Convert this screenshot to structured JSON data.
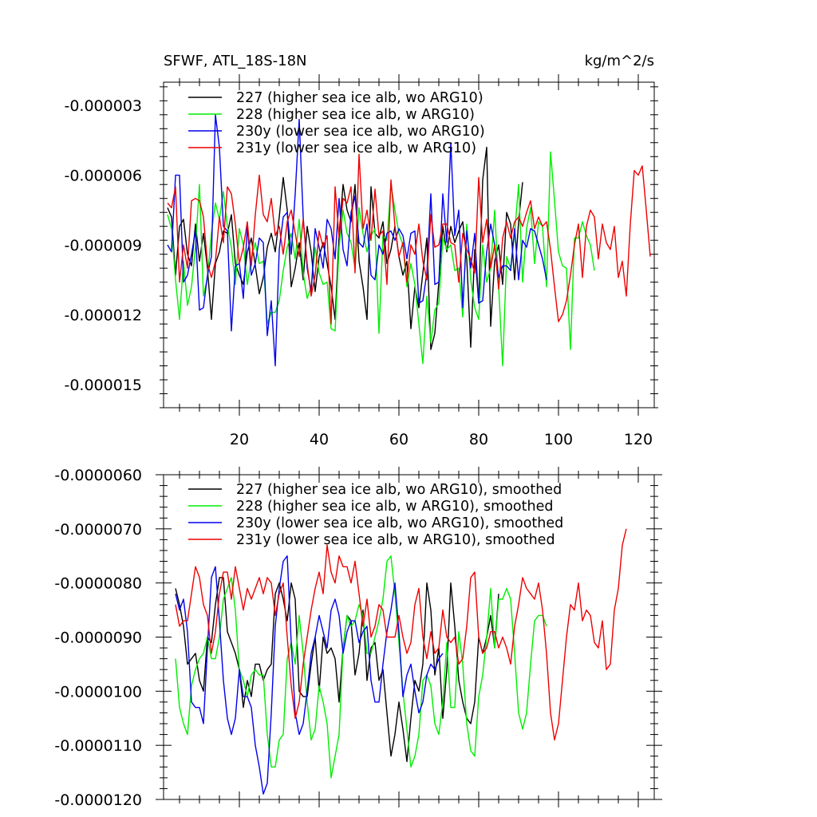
{
  "chart_data": [
    {
      "type": "line",
      "title": "SFWF, ATL_18S-18N",
      "units": "kg/m^2/s",
      "xlim": [
        1,
        124
      ],
      "ylim": [
        -1.6e-05,
        -2e-06
      ],
      "xticks": [
        20,
        40,
        60,
        80,
        100,
        120
      ],
      "xtick_labels": [
        "20",
        "40",
        "60",
        "80",
        "100",
        "120"
      ],
      "yticks": [
        -3e-06,
        -6e-06,
        -9e-06,
        -1.2e-05,
        -1.5e-05
      ],
      "ytick_labels": [
        "-0.000003",
        "-0.000006",
        "-0.000009",
        "-0.000012",
        "-0.000015"
      ],
      "legend_placement": "top-left",
      "series": [
        {
          "name": "227 (higher sea ice alb, wo ARG10)",
          "color": "#000000",
          "x_start": 2,
          "values": [
            -7.4e-06,
            -7.8e-06,
            -1.03e-05,
            -8.2e-06,
            -7.9e-06,
            -9.4e-06,
            -9.9e-06,
            -8.1e-06,
            -9.7e-06,
            -8.5e-06,
            -1e-05,
            -1.22e-05,
            -9.8e-06,
            -9.3e-06,
            -8.4e-06,
            -8.5e-06,
            -7.7e-06,
            -9.8e-06,
            -1.03e-05,
            -1.07e-05,
            -9.3e-06,
            -8.7e-06,
            -9.9e-06,
            -1.11e-05,
            -1.04e-05,
            -9.1e-06,
            -8.5e-06,
            -9.3e-06,
            -7.8e-06,
            -6.1e-06,
            -7.5e-06,
            -1.08e-05,
            -1e-05,
            -8.9e-06,
            -1.05e-05,
            -8.2e-06,
            -9.3e-06,
            -1.1e-05,
            -9.5e-06,
            -8.9e-06,
            -9.8e-06,
            -1.08e-05,
            -1.22e-05,
            -8.6e-06,
            -6.4e-06,
            -7.5e-06,
            -8e-06,
            -6.4e-06,
            -9.7e-06,
            -1.08e-05,
            -1.22e-05,
            -6.5e-06,
            -8.5e-06,
            -8.7e-06,
            -8e-06,
            -9.8e-06,
            -9.2e-06,
            -8.2e-06,
            -9.5e-06,
            -1.03e-05,
            -9.7e-06,
            -1.26e-05,
            -1.08e-05,
            -1.17e-05,
            -1.02e-05,
            -8.7e-06,
            -1.35e-05,
            -1.28e-05,
            -1.06e-05,
            -8.2e-06,
            -9.3e-06,
            -8.2e-06,
            -8.9e-06,
            -8.4e-06,
            -8e-06,
            -9.6e-06,
            -1.34e-05,
            -9.2e-06,
            -1.15e-05,
            -6.2e-06,
            -4.8e-06,
            -1.25e-05,
            -9.7e-06,
            -9e-06,
            -1.07e-05,
            -7.6e-06,
            -8.1e-06,
            -1.05e-05,
            -8e-06,
            -6.3e-06
          ]
        },
        {
          "name": "228 (higher sea ice alb, w ARG10)",
          "color": "#00ee00",
          "x_start": 2,
          "values": [
            -7.7e-06,
            -8.3e-06,
            -1.05e-05,
            -1.22e-05,
            -9.7e-06,
            -1.16e-05,
            -1.08e-05,
            -9.1e-06,
            -6.4e-06,
            -1.12e-05,
            -1.04e-05,
            -8.5e-06,
            -7.2e-06,
            -7.9e-06,
            -6.7e-06,
            -8.2e-06,
            -9.1e-06,
            -1.07e-05,
            -8.3e-06,
            -9e-06,
            -1.07e-05,
            -9.6e-06,
            -8.9e-06,
            -9.8e-06,
            -9.7e-06,
            -1.24e-05,
            -1.19e-05,
            -1.19e-05,
            -1.14e-05,
            -1.01e-05,
            -9.1e-06,
            -8.5e-06,
            -9.6e-06,
            -7.9e-06,
            -1.02e-05,
            -1.13e-05,
            -1.08e-05,
            -9.1e-06,
            -1.02e-05,
            -1.07e-05,
            -1.06e-05,
            -1.26e-05,
            -1.27e-05,
            -9.1e-06,
            -7.5e-06,
            -8.5e-06,
            -8.9e-06,
            -1e-05,
            -7.4e-06,
            -8.5e-06,
            -9.3e-06,
            -8.6e-06,
            -8.3e-06,
            -1.28e-05,
            -8.6e-06,
            -8.8e-06,
            -6.4e-06,
            -7.5e-06,
            -8.5e-06,
            -9e-06,
            -1.08e-05,
            -9.8e-06,
            -1.07e-05,
            -1.24e-05,
            -1.41e-05,
            -1.12e-05,
            -1.32e-05,
            -1.18e-05,
            -1.15e-05,
            -8.7e-06,
            -9.2e-06,
            -9e-06,
            -1.01e-05,
            -1e-05,
            -1.21e-05,
            -8.1e-06,
            -1.05e-05,
            -1.17e-05,
            -1.22e-05,
            -9e-06,
            -1.06e-05,
            -1e-05,
            -7.5e-06,
            -1.08e-05,
            -1.42e-05,
            -9.5e-06,
            -1e-05,
            -8.5e-06,
            -6.4e-06,
            -1.06e-05,
            -8.3e-06,
            -7.4e-06,
            -9.8e-06,
            -8e-06,
            -8.2e-06,
            -1.08e-05,
            -5e-06,
            -7.1e-06,
            -9.3e-06,
            -9.9e-06,
            -1e-05,
            -1.35e-05,
            -8.7e-06,
            -8.7e-06,
            -8e-06,
            -8.6e-06,
            -9e-06,
            -1.01e-05
          ]
        },
        {
          "name": "230y (lower sea ice alb, wo ARG10)",
          "color": "#0000ee",
          "x_start": 2,
          "values": [
            -9e-06,
            -9.3e-06,
            -6e-06,
            -6e-06,
            -1.06e-05,
            -1.03e-05,
            -9.4e-06,
            -8.4e-06,
            -1.18e-05,
            -1.17e-05,
            -1.03e-05,
            -9.5e-06,
            -3.4e-06,
            -4.8e-06,
            -8.2e-06,
            -8.4e-06,
            -1.27e-05,
            -9.9e-06,
            -9.8e-06,
            -1.13e-05,
            -8.2e-06,
            -1.03e-05,
            -9.8e-06,
            -8.7e-06,
            -8.9e-06,
            -1.29e-05,
            -1.14e-05,
            -1.42e-05,
            -9.2e-06,
            -7.8e-06,
            -7.6e-06,
            -9.4e-06,
            -6.8e-06,
            -3.6e-06,
            -7.8e-06,
            -1e-05,
            -1.1e-05,
            -8.3e-06,
            -9.1e-06,
            -1e-05,
            -7.9e-06,
            -8.3e-06,
            -9.6e-06,
            -7e-06,
            -9.2e-06,
            -9.9e-06,
            -7.6e-06,
            -6.9e-06,
            -8.9e-06,
            -9.1e-06,
            -8.1e-06,
            -1.03e-05,
            -1.05e-05,
            -9e-06,
            -9.4e-06,
            -8.5e-06,
            -8.4e-06,
            -8.8e-06,
            -8.3e-06,
            -8.6e-06,
            -9.6e-06,
            -8.5e-06,
            -8.4e-06,
            -1.15e-05,
            -1.14e-05,
            -1.02e-05,
            -6.8e-06,
            -1.07e-05,
            -1.06e-05,
            -6.8e-06,
            -8.9e-06,
            -4.6e-06,
            -8.6e-06,
            -7.5e-06,
            -1.17e-05,
            -8.4e-06,
            -1e-05,
            -8.5e-06,
            -1.15e-05,
            -1.14e-05,
            -9.3e-06,
            -8.1e-06,
            -9e-06,
            -1.04e-05,
            -9.9e-06,
            -9.9e-06,
            -1.01e-05,
            -8.3e-06,
            -1.05e-05,
            -8.8e-06,
            -9.1e-06,
            -8.3e-06,
            -8.4e-06,
            -9e-06,
            -9.6e-06,
            -1.05e-05
          ]
        },
        {
          "name": "231y (lower sea ice alb, w ARG10)",
          "color": "#ee0000",
          "x_start": 2,
          "values": [
            -7.2e-06,
            -7.4e-06,
            -6.5e-06,
            -1.06e-05,
            -9e-06,
            -1e-05,
            -7.1e-06,
            -7e-06,
            -7.1e-06,
            -7.8e-06,
            -9.8e-06,
            -1.04e-05,
            -9.7e-06,
            -7.8e-06,
            -8.9e-06,
            -6.5e-06,
            -6.8e-06,
            -8.1e-06,
            -9.8e-06,
            -9.1e-06,
            -8e-06,
            -9.9e-06,
            -7.7e-06,
            -6e-06,
            -7.7e-06,
            -8e-06,
            -7e-06,
            -8.6e-06,
            -8.2e-06,
            -9.4e-06,
            -8e-06,
            -7.5e-06,
            -8.5e-06,
            -9.5e-06,
            -7.9e-06,
            -9.8e-06,
            -1.12e-05,
            -1.03e-05,
            -8.4e-06,
            -9.1e-06,
            -8.6e-06,
            -1.24e-05,
            -6.5e-06,
            -8.7e-06,
            -7e-06,
            -7.2e-06,
            -6.5e-06,
            -1.02e-05,
            -5.1e-06,
            -8.3e-06,
            -7.5e-06,
            -8.8e-06,
            -6.6e-06,
            -8.6e-06,
            -8.4e-06,
            -1.07e-05,
            -6.2e-06,
            -8.2e-06,
            -9.5e-06,
            -8.9e-06,
            -1.06e-05,
            -9e-06,
            -9.4e-06,
            -8.1e-06,
            -9.7e-06,
            -1.05e-05,
            -7.7e-06,
            -9.1e-06,
            -9e-06,
            -8.1e-06,
            -8.1e-06,
            -8.9e-06,
            -9e-06,
            -1.06e-05,
            -8.5e-06,
            -9.2e-06,
            -9.6e-06,
            -1.02e-05,
            -6.1e-06,
            -8.9e-06,
            -7.9e-06,
            -1e-05,
            -9e-06,
            -1.09e-05,
            -8.7e-06,
            -8e-06,
            -8.7e-06,
            -8e-06,
            -7.8e-06,
            -8.2e-06,
            -7.6e-06,
            -7.1e-06,
            -8.3e-06,
            -7.8e-06,
            -8.2e-06,
            -8e-06,
            -9.2e-06,
            -1.08e-05,
            -1.23e-05,
            -1.2e-05,
            -1.14e-05,
            -1.03e-05,
            -9e-06,
            -8.1e-06,
            -1.04e-05,
            -8.2e-06,
            -7.5e-06,
            -7.8e-06,
            -9.6e-06,
            -8.1e-06,
            -8.9e-06,
            -9.2e-06,
            -8.2e-06,
            -1.04e-05,
            -9.7e-06,
            -1.12e-05,
            -8.1e-06,
            -5.8e-06,
            -6e-06,
            -5.6e-06,
            -7.5e-06,
            -9.5e-06
          ]
        }
      ]
    },
    {
      "type": "line",
      "xlim": [
        1,
        124
      ],
      "ylim": [
        -1.2e-05,
        -6e-06
      ],
      "xticks": [
        20,
        40,
        60,
        80,
        100,
        120
      ],
      "yticks": [
        -6e-06,
        -7e-06,
        -8e-06,
        -9e-06,
        -1e-05,
        -1.1e-05,
        -1.2e-05
      ],
      "ytick_labels": [
        "-0.0000060",
        "-0.0000070",
        "-0.0000080",
        "-0.0000090",
        "-0.0000100",
        "-0.0000110",
        "-0.0000120"
      ],
      "legend_placement": "top-left",
      "series": [
        {
          "name": "227 (higher sea ice alb, wo ARG10), smoothed",
          "color": "#000000",
          "x_start": 4,
          "values": [
            -8.1e-06,
            -8.4e-06,
            -8.8e-06,
            -9.5e-06,
            -9.4e-06,
            -9.3e-06,
            -9.8e-06,
            -1e-05,
            -9e-06,
            -9.1e-06,
            -8.4e-06,
            -7.9e-06,
            -7.9e-06,
            -8.9e-06,
            -9.1e-06,
            -9.3e-06,
            -9.6e-06,
            -1.03e-05,
            -9.8e-06,
            -1.01e-05,
            -9.5e-06,
            -9.5e-06,
            -9.8e-06,
            -9.6e-06,
            -9.5e-06,
            -8.2e-06,
            -8e-06,
            -8.3e-06,
            -8.7e-06,
            -8e-06,
            -8.3e-06,
            -1e-05,
            -1.01e-05,
            -1.01e-05,
            -9.5e-06,
            -9e-06,
            -1e-05,
            -9e-06,
            -9.3e-06,
            -9.2e-06,
            -9.4e-06,
            -1.02e-05,
            -9.2e-06,
            -8.6e-06,
            -8.7e-06,
            -9.7e-06,
            -9.3e-06,
            -8.5e-06,
            -9.8e-06,
            -9.2e-06,
            -9.1e-06,
            -9.8e-06,
            -9.6e-06,
            -1.04e-05,
            -1.12e-05,
            -1.08e-05,
            -1.02e-05,
            -1.07e-05,
            -1.13e-05,
            -1.05e-05,
            -9.8e-06,
            -1e-05,
            -9.5e-06,
            -8e-06,
            -8.5e-06,
            -9.7e-06,
            -9.2e-06,
            -1.05e-05,
            -9.6e-06,
            -8e-06,
            -8.8e-06,
            -9.8e-06,
            -1.02e-05,
            -1.05e-05,
            -1.06e-05,
            -1.02e-05,
            -9e-06,
            -9.3e-06,
            -9e-06,
            -8.6e-06,
            -9.2e-06,
            -8.2e-06
          ]
        },
        {
          "name": "228 (higher sea ice alb, w ARG10), smoothed",
          "color": "#00ee00",
          "x_start": 4,
          "values": [
            -9.4e-06,
            -1.03e-05,
            -1.06e-05,
            -1.08e-05,
            -9.9e-06,
            -9.6e-06,
            -9.4e-06,
            -9.3e-06,
            -9e-06,
            -9.4e-06,
            -9.4e-06,
            -9e-06,
            -8.3e-06,
            -8.1e-06,
            -7.9e-06,
            -8.5e-06,
            -9.6e-06,
            -9.8e-06,
            -1.01e-05,
            -9.7e-06,
            -9.6e-06,
            -9.7e-06,
            -9.7e-06,
            -1.08e-05,
            -1.14e-05,
            -1.14e-05,
            -1.09e-05,
            -1.08e-05,
            -9.4e-06,
            -9.1e-06,
            -9.5e-06,
            -8.6e-06,
            -9.3e-06,
            -1.02e-05,
            -1.09e-05,
            -1.07e-05,
            -9.9e-06,
            -1.02e-05,
            -1.06e-05,
            -1.16e-05,
            -1.12e-05,
            -1.08e-05,
            -9.2e-06,
            -8.6e-06,
            -8.8e-06,
            -8.7e-06,
            -8.4e-06,
            -8.6e-06,
            -9.3e-06,
            -9.3e-06,
            -9e-06,
            -8.7e-06,
            -8.3e-06,
            -7.6e-06,
            -7.5e-06,
            -8.2e-06,
            -9.1e-06,
            -1e-05,
            -1.07e-05,
            -1.14e-05,
            -1.12e-05,
            -1.08e-05,
            -9.8e-06,
            -9.7e-06,
            -9.9e-06,
            -1.06e-05,
            -1.08e-05,
            -1.02e-05,
            -9.1e-06,
            -1.03e-05,
            -1.03e-05,
            -8.9e-06,
            -9.5e-06,
            -1.06e-05,
            -1.11e-05,
            -1.12e-05,
            -1.01e-05,
            -9.7e-06,
            -9e-06,
            -8.1e-06,
            -9.2e-06,
            -8.3e-06,
            -8.3e-06,
            -8.1e-06,
            -8.3e-06,
            -9.3e-06,
            -1.04e-05,
            -1.07e-05,
            -1.04e-05,
            -9.5e-06,
            -8.7e-06,
            -8.6e-06,
            -8.6e-06,
            -8.8e-06
          ]
        },
        {
          "name": "230y (lower sea ice alb, wo ARG10), smoothed",
          "color": "#0000ee",
          "x_start": 4,
          "values": [
            -8.2e-06,
            -8.5e-06,
            -8.3e-06,
            -8.9e-06,
            -1.02e-05,
            -1.03e-05,
            -1.03e-05,
            -1.06e-05,
            -9.2e-06,
            -7.9e-06,
            -7.7e-06,
            -8.7e-06,
            -9.8e-06,
            -1.05e-05,
            -1.08e-05,
            -1.05e-05,
            -9.6e-06,
            -1.01e-05,
            -1.01e-05,
            -1.03e-05,
            -1.1e-05,
            -1.14e-05,
            -1.19e-05,
            -1.17e-05,
            -1.04e-05,
            -8.8e-06,
            -8.1e-06,
            -7.6e-06,
            -7.5e-06,
            -9.1e-06,
            -1.04e-05,
            -1.08e-05,
            -1.06e-05,
            -1e-05,
            -9.3e-06,
            -9e-06,
            -8.6e-06,
            -8.9e-06,
            -9.2e-06,
            -8.5e-06,
            -8.3e-06,
            -8.6e-06,
            -9.3e-06,
            -8.9e-06,
            -8.7e-06,
            -8.7e-06,
            -9.1e-06,
            -8.9e-06,
            -8.8e-06,
            -9.8e-06,
            -1.02e-05,
            -1.02e-05,
            -9.5e-06,
            -8.9e-06,
            -8.5e-06,
            -8e-06,
            -8.9e-06,
            -1.01e-05,
            -9.7e-06,
            -9.5e-06,
            -1e-05,
            -1.04e-05,
            -1.02e-05,
            -9.7e-06,
            -9.5e-06,
            -9.6e-06,
            -9.4e-06,
            -9.3e-06
          ]
        },
        {
          "name": "231y (lower sea ice alb, w ARG10), smoothed",
          "color": "#ee0000",
          "x_start": 4,
          "values": [
            -8.4e-06,
            -8.8e-06,
            -8.7e-06,
            -8.7e-06,
            -8.2e-06,
            -7.7e-06,
            -7.9e-06,
            -8.4e-06,
            -8.6e-06,
            -9.3e-06,
            -8.9e-06,
            -8.2e-06,
            -7.8e-06,
            -7.8e-06,
            -8.3e-06,
            -7.7e-06,
            -8.1e-06,
            -8.5e-06,
            -8.1e-06,
            -8.3e-06,
            -8.1e-06,
            -7.9e-06,
            -8.2e-06,
            -7.9e-06,
            -8e-06,
            -8.6e-06,
            -8.2e-06,
            -8e-06,
            -9e-06,
            -9.9e-06,
            -1.05e-05,
            -1.02e-05,
            -9.5e-06,
            -9e-06,
            -8.5e-06,
            -8.1e-06,
            -7.8e-06,
            -8.2e-06,
            -7.3e-06,
            -7.8e-06,
            -8e-06,
            -7.5e-06,
            -7.7e-06,
            -7.7e-06,
            -8e-06,
            -7.6e-06,
            -8.2e-06,
            -8.8e-06,
            -8.3e-06,
            -9e-06,
            -8.8e-06,
            -8.4e-06,
            -8.5e-06,
            -9e-06,
            -9e-06,
            -9e-06,
            -8.6e-06,
            -9e-06,
            -9.3e-06,
            -9.1e-06,
            -8.4e-06,
            -8.1e-06,
            -9e-06,
            -9.4e-06,
            -8.9e-06,
            -9.3e-06,
            -9.2e-06,
            -8.5e-06,
            -9e-06,
            -9.1e-06,
            -9e-06,
            -9.5e-06,
            -9.4e-06,
            -8.8e-06,
            -7.9e-06,
            -7.8e-06,
            -9e-06,
            -9.3e-06,
            -9.2e-06,
            -8.9e-06,
            -8.9e-06,
            -9.2e-06,
            -9e-06,
            -9.2e-06,
            -9.5e-06,
            -8.8e-06,
            -8.4e-06,
            -7.9e-06,
            -8.1e-06,
            -8.2e-06,
            -8.3e-06,
            -8e-06,
            -8.5e-06,
            -9.3e-06,
            -1.04e-05,
            -1.09e-05,
            -1.06e-05,
            -9.8e-06,
            -9e-06,
            -8.4e-06,
            -8.5e-06,
            -8e-06,
            -8.7e-06,
            -8.5e-06,
            -8.6e-06,
            -9.1e-06,
            -9.2e-06,
            -8.7e-06,
            -9.6e-06,
            -9.5e-06,
            -8.5e-06,
            -8.1e-06,
            -7.3e-06,
            -7e-06
          ]
        }
      ]
    }
  ]
}
